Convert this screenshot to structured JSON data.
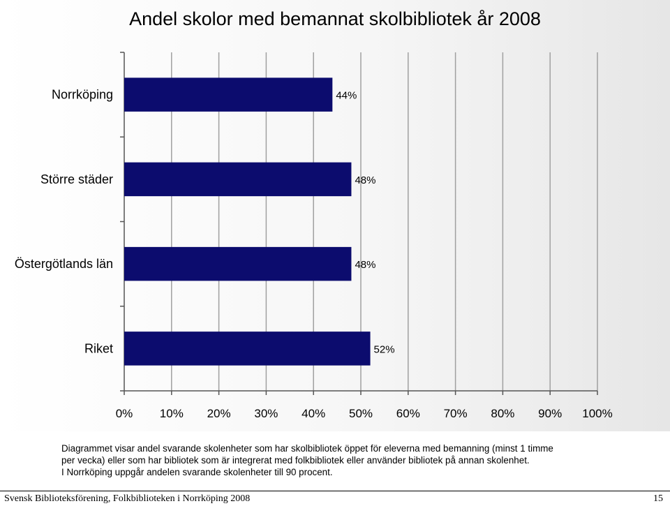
{
  "chart_data": {
    "type": "bar",
    "orientation": "horizontal",
    "title": "Andel skolor med bemannat skolbibliotek år 2008",
    "categories": [
      "Norrköping",
      "Större städer",
      "Östergötlands län",
      "Riket"
    ],
    "values": [
      44,
      48,
      48,
      52
    ],
    "data_labels": [
      "44%",
      "48%",
      "48%",
      "52%"
    ],
    "xlim": [
      0,
      100
    ],
    "x_ticks": [
      0,
      10,
      20,
      30,
      40,
      50,
      60,
      70,
      80,
      90,
      100
    ],
    "x_tick_labels": [
      "0%",
      "10%",
      "20%",
      "30%",
      "40%",
      "50%",
      "60%",
      "70%",
      "80%",
      "90%",
      "100%"
    ],
    "grid": "vertical",
    "bar_color": "#0c0c6e",
    "grid_color": "#a0a0a0"
  },
  "caption": {
    "line1": "Diagrammet visar andel svarande skolenheter som har skolbibliotek öppet för eleverna med bemanning (minst 1 timme",
    "line2": "per vecka) eller som har bibliotek som är integrerat med folkbibliotek eller använder bibliotek på annan skolenhet.",
    "line3": "I Norrköping uppgår andelen svarande skolenheter till 90 procent."
  },
  "footer": {
    "source": "Svensk Biblioteksförening, Folkbiblioteken i Norrköping 2008",
    "page_number": "15"
  }
}
